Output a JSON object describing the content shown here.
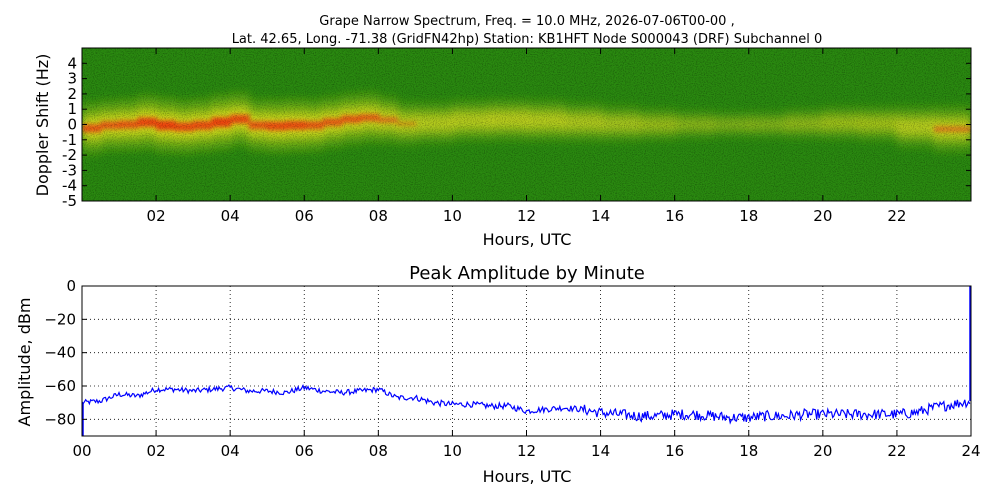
{
  "chart_data": [
    {
      "type": "heatmap",
      "title": "Grape Narrow Spectrum, Freq. = 10.0 MHz, 2026-07-06T00-00 ,",
      "subtitle": "Lat.  42.65, Long. -71.38 (GridFN42hp) Station: KB1HFT Node S000043 (DRF) Subchannel 0",
      "xlabel": "Hours, UTC",
      "ylabel": "Doppler Shift (Hz)",
      "xlim": [
        0,
        24
      ],
      "ylim": [
        -5,
        5
      ],
      "x_ticks": [
        "02",
        "04",
        "06",
        "08",
        "10",
        "12",
        "14",
        "16",
        "18",
        "20",
        "22"
      ],
      "x_tick_values": [
        2,
        4,
        6,
        8,
        10,
        12,
        14,
        16,
        18,
        20,
        22
      ],
      "y_ticks": [
        "4",
        "3",
        "2",
        "1",
        "0",
        "-1",
        "-2",
        "-3",
        "-4",
        "-5"
      ],
      "y_tick_values": [
        4,
        3,
        2,
        1,
        0,
        -1,
        -2,
        -3,
        -4,
        -5
      ],
      "colors": {
        "background": "#2a8a10",
        "mid": "#c8e020",
        "high": "#f0e020",
        "peak": "#f04010"
      },
      "carrier_trace": {
        "hours": [
          0,
          0.5,
          1,
          1.5,
          2,
          2.5,
          3,
          3.5,
          4,
          4.5,
          5,
          5.5,
          6,
          6.5,
          7,
          7.5,
          8,
          8.5,
          9,
          10,
          11,
          12,
          13,
          14,
          15,
          16,
          17,
          18,
          19,
          20,
          21,
          22,
          23,
          24
        ],
        "doppler_hz": [
          -0.3,
          -0.2,
          0.1,
          -0.1,
          0.4,
          -0.5,
          0.2,
          -0.3,
          0.6,
          0.1,
          -0.2,
          0.0,
          -0.1,
          0.0,
          0.3,
          0.4,
          0.5,
          0.1,
          0.0,
          0.2,
          0.3,
          0.3,
          0.2,
          0.1,
          0.0,
          0.0,
          0.0,
          0.0,
          0.0,
          0.1,
          0.1,
          0.0,
          -0.3,
          -0.3
        ],
        "intensity": [
          0.9,
          0.85,
          0.85,
          0.9,
          1.0,
          0.95,
          0.9,
          0.95,
          1.0,
          0.85,
          0.9,
          0.95,
          0.9,
          0.85,
          0.85,
          0.85,
          0.8,
          0.65,
          0.55,
          0.55,
          0.55,
          0.6,
          0.5,
          0.45,
          0.35,
          0.25,
          0.1,
          0.1,
          0.15,
          0.3,
          0.35,
          0.4,
          0.7,
          0.7
        ]
      }
    },
    {
      "type": "line",
      "title": "Peak Amplitude by Minute",
      "xlabel": "Hours, UTC",
      "ylabel": "Amplitude, dBm",
      "xlim": [
        0,
        24
      ],
      "ylim": [
        -90,
        0
      ],
      "grid": true,
      "x_ticks": [
        "00",
        "02",
        "04",
        "06",
        "08",
        "10",
        "12",
        "14",
        "16",
        "18",
        "20",
        "22",
        "24"
      ],
      "x_tick_values": [
        0,
        2,
        4,
        6,
        8,
        10,
        12,
        14,
        16,
        18,
        20,
        22,
        24
      ],
      "y_ticks": [
        "0",
        "−20",
        "−40",
        "−60",
        "−80"
      ],
      "y_tick_values": [
        0,
        -20,
        -40,
        -60,
        -80
      ],
      "line_color": "#0000ff",
      "series": [
        {
          "x": [
            0,
            0.5,
            1,
            1.5,
            2,
            2.5,
            3,
            3.5,
            4,
            4.5,
            5,
            5.5,
            6,
            6.5,
            7,
            7.5,
            8,
            8.5,
            9,
            9.5,
            10,
            10.5,
            11,
            11.5,
            12,
            12.5,
            13,
            13.5,
            14,
            14.5,
            15,
            15.5,
            16,
            16.5,
            17,
            17.5,
            18,
            18.5,
            19,
            19.5,
            20,
            20.5,
            21,
            21.5,
            22,
            22.5,
            23,
            23.5,
            24
          ],
          "values": [
            -70,
            -69,
            -65,
            -66,
            -62,
            -62,
            -63,
            -62,
            -61,
            -63,
            -63,
            -64,
            -61,
            -63,
            -64,
            -63,
            -62,
            -67,
            -67,
            -70,
            -71,
            -71,
            -72,
            -72,
            -75,
            -74,
            -73,
            -74,
            -76,
            -77,
            -78,
            -78,
            -77,
            -77,
            -78,
            -79,
            -79,
            -78,
            -78,
            -77,
            -77,
            -77,
            -77,
            -77,
            -77,
            -76,
            -73,
            -71,
            -69
          ]
        }
      ]
    }
  ]
}
